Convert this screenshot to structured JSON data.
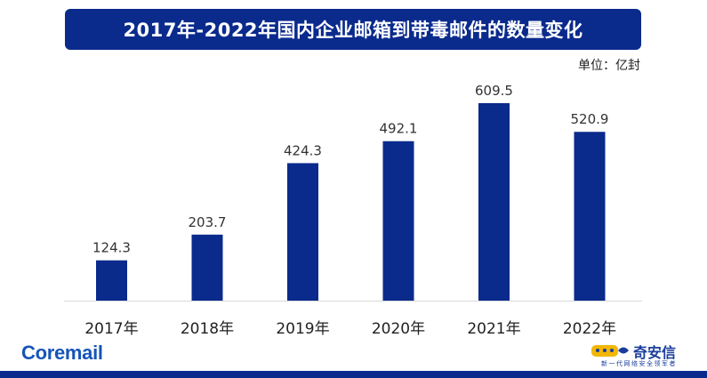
{
  "header": {
    "title": "2017年-2022年国内企业邮箱到带毒邮件的数量变化",
    "unit": "单位：亿封"
  },
  "chart_data": {
    "type": "bar",
    "title": "2017年-2022年国内企业邮箱到带毒邮件的数量变化",
    "categories": [
      "2017年",
      "2018年",
      "2019年",
      "2020年",
      "2021年",
      "2022年"
    ],
    "values": [
      124.3,
      203.7,
      424.3,
      492.1,
      609.5,
      520.9
    ],
    "value_labels": [
      "124.3",
      "203.7",
      "424.3",
      "492.1",
      "609.5",
      "520.9"
    ],
    "ylabel": "单位：亿封",
    "xlabel": "",
    "ylim": [
      0,
      700
    ],
    "grid": false,
    "legend": "none",
    "bar_color": "#0a2a8c",
    "baseline_color": "#d9d9d9"
  },
  "branding": {
    "left_logo": "Coremail",
    "right_logo_name": "奇安信",
    "right_logo_slogan": "新一代网络安全领军者",
    "brand_color": "#1655b8",
    "accent_color": "#f2b705"
  }
}
